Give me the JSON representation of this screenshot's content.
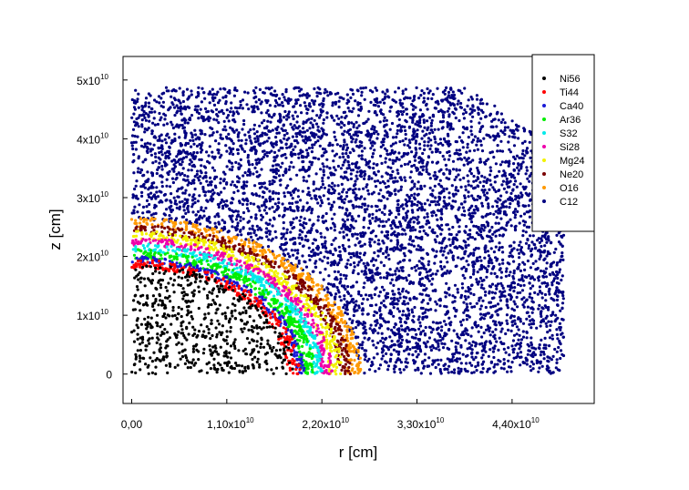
{
  "chart_data": {
    "type": "scatter",
    "xlabel": "r [cm]",
    "ylabel": "z [cm]",
    "xlim": [
      -0.1,
      5.35
    ],
    "ylim": [
      -0.5,
      5.4
    ],
    "x_ticks": [
      {
        "value": 0.0,
        "mant": "0,00",
        "exp": ""
      },
      {
        "value": 1.1,
        "mant": "1,10x10",
        "exp": "10"
      },
      {
        "value": 2.2,
        "mant": "2,20x10",
        "exp": "10"
      },
      {
        "value": 3.3,
        "mant": "3,30x10",
        "exp": "10"
      },
      {
        "value": 4.4,
        "mant": "4,40x10",
        "exp": "10"
      }
    ],
    "y_ticks": [
      {
        "value": 0,
        "mant": "0",
        "exp": ""
      },
      {
        "value": 1,
        "mant": "1x10",
        "exp": "10"
      },
      {
        "value": 2,
        "mant": "2x10",
        "exp": "10"
      },
      {
        "value": 3,
        "mant": "3x10",
        "exp": "10"
      },
      {
        "value": 4,
        "mant": "4x10",
        "exp": "10"
      },
      {
        "value": 5,
        "mant": "5x10",
        "exp": "10"
      }
    ],
    "legend_position": "top-right",
    "grid": false,
    "series": [
      {
        "name": "Ni56",
        "color": "#000000",
        "shell_r": [
          0.0,
          1.88
        ],
        "approx_points": 620
      },
      {
        "name": "Ti44",
        "color": "#ff0000",
        "shell_r": [
          1.8,
          1.95
        ],
        "approx_points": 240
      },
      {
        "name": "Ca40",
        "color": "#1a1ad6",
        "shell_r": [
          1.9,
          2.0
        ],
        "approx_points": 200
      },
      {
        "name": "Ar36",
        "color": "#00ee00",
        "shell_r": [
          1.96,
          2.12
        ],
        "approx_points": 320
      },
      {
        "name": "S32",
        "color": "#00eaea",
        "shell_r": [
          2.08,
          2.22
        ],
        "approx_points": 290
      },
      {
        "name": "Si28",
        "color": "#ee00aa",
        "shell_r": [
          2.18,
          2.32
        ],
        "approx_points": 290
      },
      {
        "name": "Mg24",
        "color": "#f2f200",
        "shell_r": [
          2.28,
          2.44
        ],
        "approx_points": 320
      },
      {
        "name": "Ne20",
        "color": "#7a0000",
        "shell_r": [
          2.4,
          2.54
        ],
        "approx_points": 300
      },
      {
        "name": "O16",
        "color": "#ff9900",
        "shell_r": [
          2.5,
          2.66
        ],
        "approx_points": 340
      },
      {
        "name": "C12",
        "color": "#000080",
        "shell_r": [
          2.62,
          6.2
        ],
        "x_max": 5.0,
        "z_max": 4.87,
        "approx_points": 5200
      }
    ]
  }
}
